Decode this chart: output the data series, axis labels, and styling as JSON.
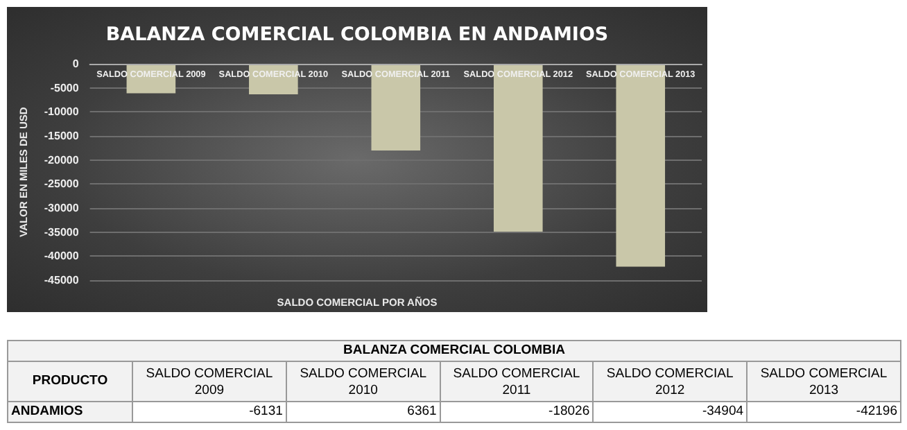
{
  "chart_data": {
    "type": "bar",
    "title": "BALANZA COMERCIAL COLOMBIA EN ANDAMIOS",
    "xlabel": "SALDO COMERCIAL POR AÑOS",
    "ylabel": "VALOR EN MILES DE USD",
    "categories": [
      "SALDO COMERCIAL 2009",
      "SALDO COMERCIAL 2010",
      "SALDO COMERCIAL 2011",
      "SALDO COMERCIAL 2012",
      "SALDO COMERCIAL 2013"
    ],
    "values": [
      -6131,
      -6361,
      -18026,
      -34904,
      -42196
    ],
    "color": "#c9c7a9",
    "ylim": [
      -45000,
      0
    ],
    "yticks": [
      -45000,
      -40000,
      -35000,
      -30000,
      -25000,
      -20000,
      -15000,
      -10000,
      -5000,
      0
    ],
    "grid": "y",
    "annotations": [
      "BALANZA COMERCIAL COLOMBIA",
      "PRODUCTO",
      "ANDAMIOS",
      "-6131",
      "6361",
      "-18026",
      "-34904",
      "-42196"
    ]
  }
}
